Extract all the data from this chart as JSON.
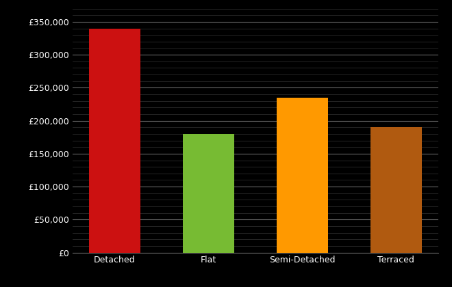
{
  "categories": [
    "Detached",
    "Flat",
    "Semi-Detached",
    "Terraced"
  ],
  "values": [
    340000,
    180000,
    235000,
    190000
  ],
  "bar_colors": [
    "#cc1111",
    "#77bb33",
    "#ff9900",
    "#b05a10"
  ],
  "background_color": "#000000",
  "text_color": "#ffffff",
  "grid_color_major": "#666666",
  "grid_color_minor": "#333333",
  "ylim": [
    0,
    370000
  ],
  "ytick_step": 50000,
  "ytick_minor_step": 10000,
  "bar_width": 0.55
}
